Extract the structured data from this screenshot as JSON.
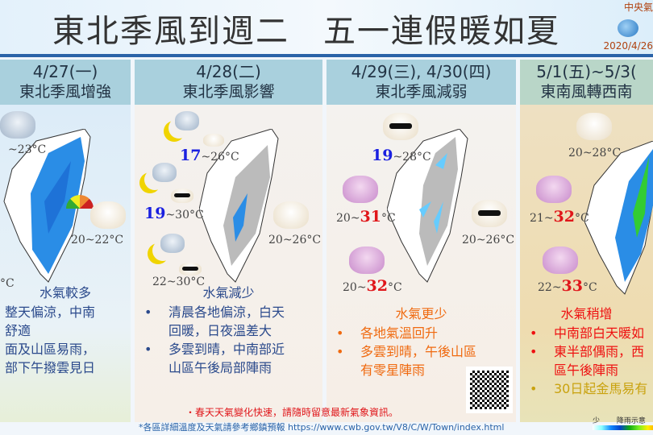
{
  "header": {
    "title": "東北季風到週二　五一連假暖如夏",
    "agency": "中央氣",
    "date": "2020/4/26"
  },
  "columns": [
    {
      "date": "4/27(一)",
      "subtitle": "東北季風增強",
      "temps": [
        {
          "low": "",
          "high": "~23°C"
        },
        {
          "low": "20",
          "high": "~22°C"
        },
        {
          "low": "",
          "high": "°C"
        }
      ],
      "heading": "水氣較多",
      "bullets": [
        "整天偏涼，中南",
        "舒適",
        "面及山區易雨，",
        "部下午撥雲見日"
      ]
    },
    {
      "date": "4/28(二)",
      "subtitle": "東北季風影響",
      "temps": [
        {
          "low": "17",
          "high": "~26°C"
        },
        {
          "low": "19",
          "high": "~30°C"
        },
        {
          "low": "22",
          "high": "~30°C"
        },
        {
          "low": "20",
          "high": "~26°C"
        }
      ],
      "heading": "水氣減少",
      "bullets": [
        "清晨各地偏涼，白天",
        "回暖，日夜溫差大",
        "多雲到晴，中南部近",
        "山區午後局部陣雨"
      ]
    },
    {
      "date": "4/29(三), 4/30(四)",
      "subtitle": "東北季風減弱",
      "temps": [
        {
          "low": "19",
          "high": "~28°C"
        },
        {
          "low": "20~",
          "high": "31"
        },
        {
          "low": "20~",
          "high": "32"
        },
        {
          "low": "20",
          "high": "~26°C"
        }
      ],
      "heading": "水氣更少",
      "bullets": [
        "各地氣溫回升",
        "多雲到晴，午後山區",
        "有零星陣雨"
      ]
    },
    {
      "date": "5/1(五)~5/3(",
      "subtitle": "東南風轉西南",
      "temps": [
        {
          "low": "20",
          "high": "~28°C"
        },
        {
          "low": "21~",
          "high": "32"
        },
        {
          "low": "22~",
          "high": "33"
        }
      ],
      "heading": "水氣稍增",
      "bullets": [
        "中南部白天暖如",
        "東半部偶雨，西",
        "區午後陣雨",
        "30日起金馬易有"
      ]
    }
  ],
  "unit": "°C",
  "warning": "・春天天氣變化快速，請隨時留意最新氣象資訊。",
  "note": "*各區詳細溫度及天氣請參考鄉鎮預報 https://www.cwb.gov.tw/V8/C/W/Town/index.html",
  "legend": {
    "low": "少",
    "label": "降雨示意"
  },
  "colors": {
    "cold": "#1a20e0",
    "hot": "#e0161a",
    "rule": "#2a63a8"
  }
}
